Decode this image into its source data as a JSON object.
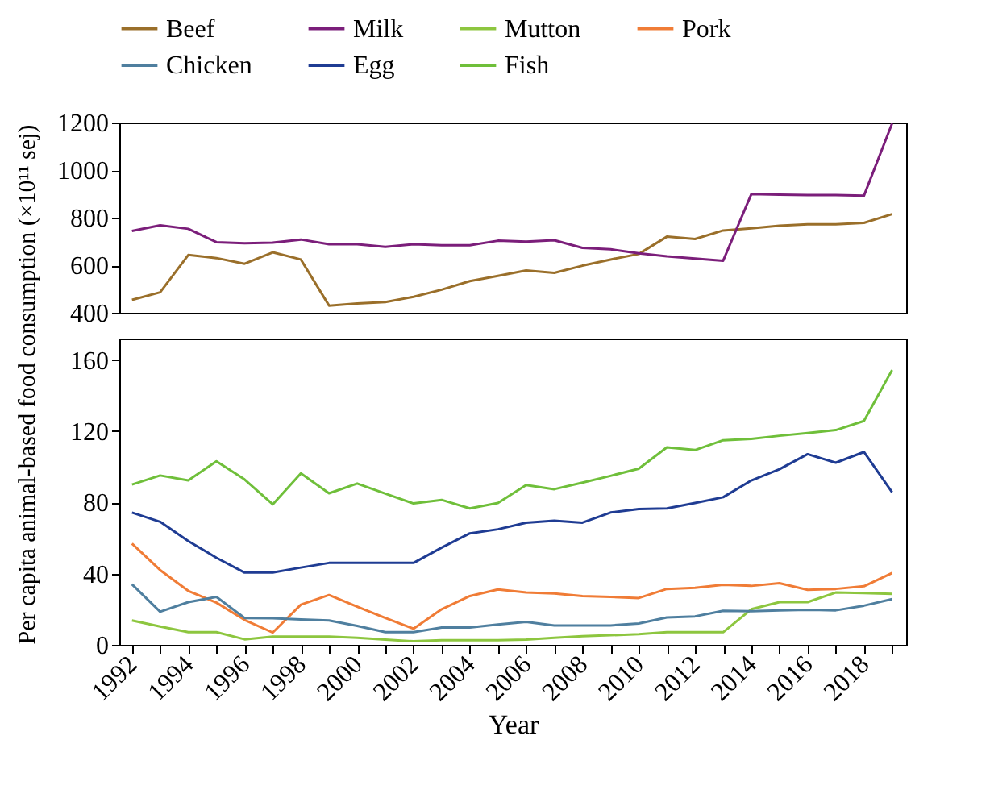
{
  "chart_data": [
    {
      "type": "line",
      "legend": "top",
      "tick_labels": "y",
      "xlim": [
        1991.55,
        2019.5
      ],
      "ylim": [
        400,
        1200
      ],
      "yticks": [
        400,
        600,
        800,
        1000,
        1200
      ],
      "x": [
        1992,
        1993,
        1994,
        1995,
        1996,
        1997,
        1998,
        1999,
        2000,
        2001,
        2002,
        2003,
        2004,
        2005,
        2006,
        2007,
        2008,
        2009,
        2010,
        2011,
        2012,
        2013,
        2014,
        2015,
        2016,
        2017,
        2018,
        2019
      ],
      "series": [
        {
          "name": "Beef",
          "color": "#9a6f2a",
          "values": [
            454,
            486,
            643,
            630,
            606,
            654,
            624,
            430,
            439,
            445,
            467,
            497,
            533,
            555,
            578,
            568,
            598,
            624,
            647,
            720,
            710,
            746,
            755,
            766,
            772,
            772,
            778,
            815
          ]
        },
        {
          "name": "Milk",
          "color": "#7b1e7a",
          "values": [
            744,
            768,
            753,
            697,
            692,
            695,
            708,
            688,
            688,
            677,
            688,
            684,
            684,
            703,
            699,
            705,
            673,
            667,
            650,
            637,
            628,
            619,
            899,
            897,
            895,
            895,
            892,
            1196
          ]
        }
      ]
    },
    {
      "type": "line",
      "legend": "top",
      "xlabel": "Year",
      "ylabel": "Per capita animal-based food consumption (×10¹¹ sej)",
      "xlim": [
        1991.55,
        2019.5
      ],
      "ylim": [
        0,
        172
      ],
      "yticks": [
        0,
        40,
        80,
        120,
        160
      ],
      "xticks": [
        1992,
        {
          "value": 1993,
          "label": null
        },
        1994,
        {
          "value": 1995,
          "label": null
        },
        1996,
        {
          "value": 1997,
          "label": null
        },
        1998,
        {
          "value": 1999,
          "label": null
        },
        2000,
        {
          "value": 2001,
          "label": null
        },
        2002,
        {
          "value": 2003,
          "label": null
        },
        2004,
        {
          "value": 2005,
          "label": null
        },
        2006,
        {
          "value": 2007,
          "label": null
        },
        2008,
        {
          "value": 2009,
          "label": null
        },
        2010,
        {
          "value": 2011,
          "label": null
        },
        2012,
        {
          "value": 2013,
          "label": null
        },
        2014,
        {
          "value": 2015,
          "label": null
        },
        2016,
        {
          "value": 2017,
          "label": null
        },
        2018,
        {
          "value": 2019,
          "label": null
        }
      ],
      "x": [
        1992,
        1993,
        1994,
        1995,
        1996,
        1997,
        1998,
        1999,
        2000,
        2001,
        2002,
        2003,
        2004,
        2005,
        2006,
        2007,
        2008,
        2009,
        2010,
        2011,
        2012,
        2013,
        2014,
        2015,
        2016,
        2017,
        2018,
        2019
      ],
      "series": [
        {
          "name": "Mutton",
          "color": "#8dc63f",
          "values": [
            13.7,
            10.3,
            7.1,
            7.1,
            3.1,
            4.6,
            4.6,
            4.6,
            4,
            2.9,
            2,
            2.6,
            2.6,
            2.6,
            2.9,
            4,
            4.9,
            5.4,
            6,
            7.1,
            7.1,
            7.1,
            20,
            24,
            24,
            29.4,
            29.1,
            28.6
          ]
        },
        {
          "name": "Pork",
          "color": "#f07c36",
          "values": [
            56.9,
            42,
            30.3,
            23.7,
            14,
            6.9,
            22.6,
            28,
            21.4,
            15.1,
            9.1,
            20,
            27.4,
            31.1,
            29.4,
            28.9,
            27.4,
            26.9,
            26.3,
            31.4,
            32,
            33.7,
            33.1,
            34.6,
            30.9,
            31.4,
            32.9,
            40.3
          ]
        },
        {
          "name": "Chicken",
          "color": "#4f7f9f",
          "values": [
            34,
            18.6,
            24,
            26.9,
            15.1,
            14.9,
            14.3,
            13.7,
            10.6,
            7.1,
            7.1,
            9.7,
            9.7,
            11.4,
            12.9,
            10.9,
            10.9,
            10.9,
            12,
            15.4,
            16,
            19.1,
            18.9,
            19.4,
            19.7,
            19.4,
            22,
            25.7
          ]
        },
        {
          "name": "Egg",
          "color": "#1f3c93",
          "values": [
            74.3,
            69.1,
            58.3,
            48.9,
            40.6,
            40.6,
            43.4,
            46,
            46,
            46,
            46,
            54.6,
            62.6,
            64.9,
            68.6,
            69.7,
            68.6,
            74.3,
            76.3,
            76.6,
            79.7,
            82.9,
            92.3,
            98.6,
            107.1,
            102.3,
            108.3,
            85.7
          ]
        },
        {
          "name": "Fish",
          "color": "#6fbf3a",
          "values": [
            90,
            95.1,
            92.3,
            103.1,
            92.9,
            78.9,
            96.3,
            85.1,
            90.6,
            84.9,
            79.4,
            81.4,
            76.6,
            79.7,
            89.7,
            87.4,
            91.1,
            94.9,
            98.9,
            110.9,
            109.4,
            114.9,
            115.7,
            117.4,
            118.9,
            120.6,
            125.7,
            154.3
          ]
        }
      ]
    }
  ]
}
